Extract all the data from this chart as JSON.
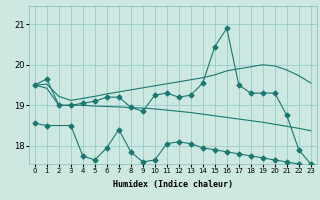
{
  "bg_color": "#cce8e0",
  "grid_color": "#99cccc",
  "line_color": "#1a7870",
  "xlabel": "Humidex (Indice chaleur)",
  "ylim": [
    17.55,
    21.45
  ],
  "xlim": [
    -0.5,
    23.5
  ],
  "yticks": [
    18,
    19,
    20,
    21
  ],
  "xticks": [
    0,
    1,
    2,
    3,
    4,
    5,
    6,
    7,
    8,
    9,
    10,
    11,
    12,
    13,
    14,
    15,
    16,
    17,
    18,
    19,
    20,
    21,
    22,
    23
  ],
  "series1_x": [
    0,
    1,
    2,
    3,
    4,
    5,
    6,
    7,
    8,
    9,
    10,
    11,
    12,
    13,
    14,
    15,
    16,
    17,
    18,
    19,
    20,
    21,
    22,
    23
  ],
  "series1_y": [
    19.5,
    19.65,
    19.0,
    19.0,
    19.05,
    19.1,
    19.2,
    19.2,
    18.95,
    18.85,
    19.25,
    19.3,
    19.2,
    19.25,
    19.55,
    20.45,
    20.9,
    19.5,
    19.3,
    19.3,
    19.3,
    18.75,
    17.9,
    17.55
  ],
  "series2_x": [
    0,
    1,
    2,
    3,
    4,
    5,
    6,
    7,
    8,
    9,
    10,
    11,
    12,
    13,
    14,
    15,
    16,
    17,
    18,
    19,
    20,
    21,
    22,
    23
  ],
  "series2_y": [
    19.5,
    19.52,
    19.22,
    19.12,
    19.17,
    19.22,
    19.28,
    19.33,
    19.38,
    19.43,
    19.48,
    19.53,
    19.58,
    19.63,
    19.68,
    19.75,
    19.85,
    19.9,
    19.95,
    20.0,
    19.97,
    19.87,
    19.73,
    19.55
  ],
  "series3_x": [
    0,
    1,
    2,
    3,
    4,
    5,
    6,
    7,
    8,
    9,
    10,
    11,
    12,
    13,
    14,
    15,
    16,
    17,
    18,
    19,
    20,
    21,
    22,
    23
  ],
  "series3_y": [
    19.5,
    19.42,
    19.0,
    19.0,
    19.0,
    18.98,
    18.97,
    18.96,
    18.94,
    18.93,
    18.91,
    18.88,
    18.85,
    18.82,
    18.78,
    18.74,
    18.7,
    18.66,
    18.62,
    18.58,
    18.53,
    18.48,
    18.43,
    18.37
  ],
  "series4_x": [
    0,
    1,
    3,
    4,
    5,
    6,
    7,
    8,
    9,
    10,
    11,
    12,
    13,
    14,
    15,
    16,
    17,
    18,
    19,
    20,
    21,
    22,
    23
  ],
  "series4_y": [
    18.55,
    18.5,
    18.5,
    17.75,
    17.65,
    17.95,
    18.4,
    17.85,
    17.6,
    17.65,
    18.05,
    18.1,
    18.05,
    17.95,
    17.9,
    17.85,
    17.8,
    17.75,
    17.7,
    17.65,
    17.6,
    17.55,
    17.5
  ]
}
